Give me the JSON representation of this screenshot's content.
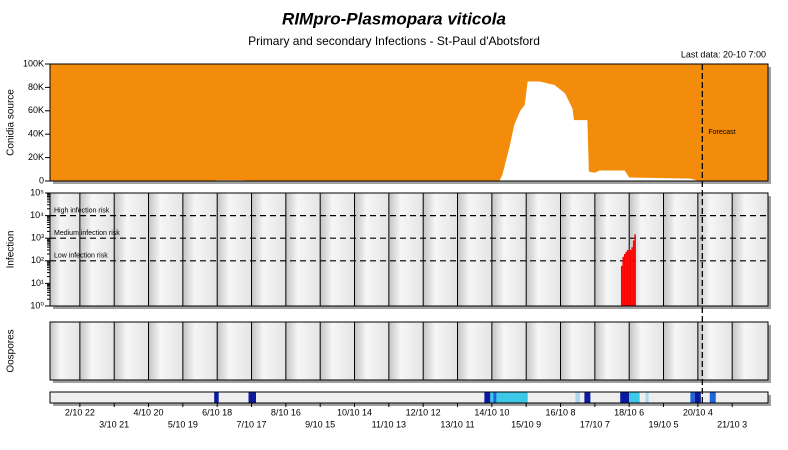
{
  "title": "RIMpro-Plasmopara viticola",
  "subtitle": "Primary and secondary Infections - St-Paul d'Abotsford",
  "last_data": "Last data: 20-10 7:00",
  "chart_data": [
    {
      "type": "area",
      "ylabel": "Conidia source",
      "background": "#f28c0a",
      "xlim": [
        0,
        481
      ],
      "ylim": [
        0,
        100000
      ],
      "yticks": [
        0,
        {
          "value": 20000,
          "label": "20K"
        },
        {
          "value": 40000,
          "label": "40K"
        },
        {
          "value": 60000,
          "label": "60K"
        },
        {
          "value": 80000,
          "label": "80K"
        },
        {
          "value": 100000,
          "label": "100K"
        }
      ],
      "forecast_x": 437,
      "forecast_label": "Forecast",
      "x": [
        108,
        112,
        130,
        134,
        301,
        303,
        308,
        311,
        315,
        318,
        320,
        328,
        338,
        345,
        350,
        351,
        360,
        361,
        365,
        368,
        385,
        388,
        429,
        435
      ],
      "series": [
        {
          "color": "#ffffff",
          "values": [
            0,
            600,
            600,
            0,
            0,
            5000,
            30000,
            48000,
            60000,
            65000,
            85000,
            85000,
            82000,
            75000,
            62000,
            52000,
            52000,
            8000,
            7000,
            9000,
            9000,
            3000,
            2000,
            0
          ]
        }
      ]
    },
    {
      "type": "bar",
      "ylabel": "Infection",
      "ylog": true,
      "xlim": [
        0,
        481
      ],
      "ylim": [
        1,
        100000
      ],
      "yticks": [
        {
          "value": 1,
          "label": "10⁰"
        },
        {
          "value": 10,
          "label": "10¹"
        },
        {
          "value": 100,
          "label": "10²"
        },
        {
          "value": 1000,
          "label": "10³"
        },
        {
          "value": 10000,
          "label": "10⁴"
        },
        {
          "value": 100000,
          "label": "10⁵"
        }
      ],
      "thresholds": [
        {
          "value": 10000,
          "label": "High infection risk"
        },
        {
          "value": 1000,
          "label": "Medium infection risk"
        },
        {
          "value": 100,
          "label": "Low infection risk"
        }
      ],
      "x": [
        383,
        384,
        385,
        386,
        387,
        388,
        389,
        390,
        391,
        392
      ],
      "series": [
        {
          "color": "#ff0000",
          "values": [
            60,
            150,
            200,
            250,
            300,
            300,
            300,
            400,
            800,
            1500
          ]
        }
      ]
    },
    {
      "type": "empty",
      "ylabel": "Oospores",
      "xlim": [
        0,
        481
      ]
    },
    {
      "type": "strip",
      "xlim": [
        0,
        481
      ],
      "segments": [
        {
          "start": 110,
          "end": 113,
          "color": "#0a1aa0"
        },
        {
          "start": 133,
          "end": 138,
          "color": "#0a1aa0"
        },
        {
          "start": 291,
          "end": 295,
          "color": "#0a1aa0"
        },
        {
          "start": 295,
          "end": 320,
          "color": "#3cc8e6"
        },
        {
          "start": 297,
          "end": 299,
          "color": "#1e64dc"
        },
        {
          "start": 352,
          "end": 355,
          "color": "#a8d8f0"
        },
        {
          "start": 358,
          "end": 362,
          "color": "#0a1aa0"
        },
        {
          "start": 382,
          "end": 388,
          "color": "#0a1aa0"
        },
        {
          "start": 388,
          "end": 395,
          "color": "#3cc8e6"
        },
        {
          "start": 399,
          "end": 401,
          "color": "#a8d8f0"
        },
        {
          "start": 429,
          "end": 432,
          "color": "#1e64dc"
        },
        {
          "start": 432,
          "end": 436,
          "color": "#0a1aa0"
        },
        {
          "start": 442,
          "end": 446,
          "color": "#1e64dc"
        }
      ],
      "xticks": [
        {
          "value": 20,
          "label": "2/10 22"
        },
        {
          "value": 43,
          "label": "3/10 21"
        },
        {
          "value": 66,
          "label": "4/10 20"
        },
        {
          "value": 89,
          "label": "5/10 19"
        },
        {
          "value": 112,
          "label": "6/10 18"
        },
        {
          "value": 135,
          "label": "7/10 17"
        },
        {
          "value": 158,
          "label": "8/10 16"
        },
        {
          "value": 181,
          "label": "9/10 15"
        },
        {
          "value": 204,
          "label": "10/10 14"
        },
        {
          "value": 227,
          "label": "11/10 13"
        },
        {
          "value": 250,
          "label": "12/10 12"
        },
        {
          "value": 273,
          "label": "13/10 11"
        },
        {
          "value": 296,
          "label": "14/10 10"
        },
        {
          "value": 319,
          "label": "15/10 9"
        },
        {
          "value": 342,
          "label": "16/10 8"
        },
        {
          "value": 365,
          "label": "17/10 7"
        },
        {
          "value": 388,
          "label": "18/10 6"
        },
        {
          "value": 411,
          "label": "19/10 5"
        },
        {
          "value": 434,
          "label": "20/10 4"
        },
        {
          "value": 457,
          "label": "21/10 3"
        }
      ]
    }
  ]
}
